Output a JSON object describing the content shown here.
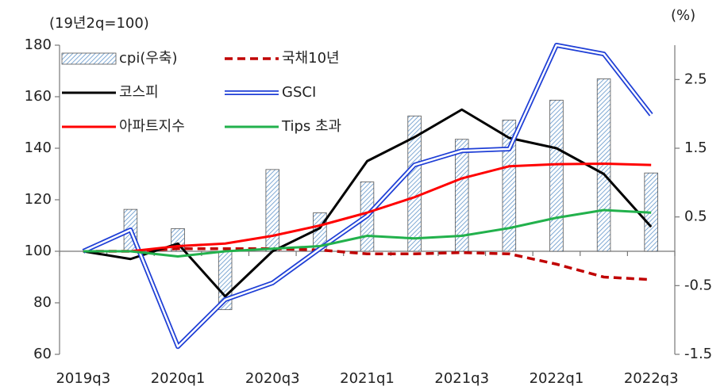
{
  "chart_data": {
    "type": "combo",
    "y_label": "(19년2q=100)",
    "y2_label": "(%)",
    "categories": [
      "2019q3",
      null,
      "2020q1",
      null,
      "2020q3",
      null,
      "2021q1",
      null,
      "2021q3",
      null,
      "2022q1",
      null,
      "2022q3"
    ],
    "ylim": [
      60,
      180
    ],
    "yticks": [
      60,
      80,
      100,
      120,
      140,
      160,
      180
    ],
    "y2lim": [
      -1.5,
      3.0
    ],
    "y2ticks": [
      -1.5,
      -0.5,
      0.5,
      1.5,
      2.5
    ],
    "series": [
      {
        "name": "cpi(우축)",
        "type": "bar",
        "axis": "y2",
        "color": "#9dc3e6",
        "values": [
          0,
          0.61,
          0.33,
          -0.85,
          1.19,
          0.56,
          1.01,
          1.97,
          1.63,
          1.91,
          2.2,
          2.51,
          1.14
        ]
      },
      {
        "name": "국채10년",
        "type": "line",
        "dash": true,
        "color": "#c00000",
        "values": [
          100,
          100,
          101,
          101,
          101,
          100.5,
          99,
          99,
          99.5,
          99,
          95,
          90,
          89
        ]
      },
      {
        "name": "코스피",
        "type": "line",
        "color": "#000000",
        "values": [
          100,
          97,
          103,
          82.5,
          100,
          109,
          135,
          144.3,
          155,
          144,
          140,
          130,
          109.5
        ]
      },
      {
        "name": "GSCI",
        "type": "line",
        "double": true,
        "color": "#1f3fd6",
        "values": [
          100,
          108.3,
          63,
          81.2,
          87.7,
          101,
          113.8,
          133.5,
          139,
          139.7,
          180,
          176.6,
          153
        ]
      },
      {
        "name": "아파트지수",
        "type": "line",
        "color": "#ff0000",
        "values": [
          100,
          100,
          102,
          103,
          106,
          110,
          115,
          121,
          128.3,
          133,
          133.8,
          134,
          133.5
        ]
      },
      {
        "name": "Tips 초과",
        "type": "line",
        "color": "#22b14c",
        "values": [
          100,
          100,
          98,
          100,
          101,
          102,
          106,
          105,
          106,
          109,
          113,
          116,
          115
        ]
      }
    ]
  }
}
